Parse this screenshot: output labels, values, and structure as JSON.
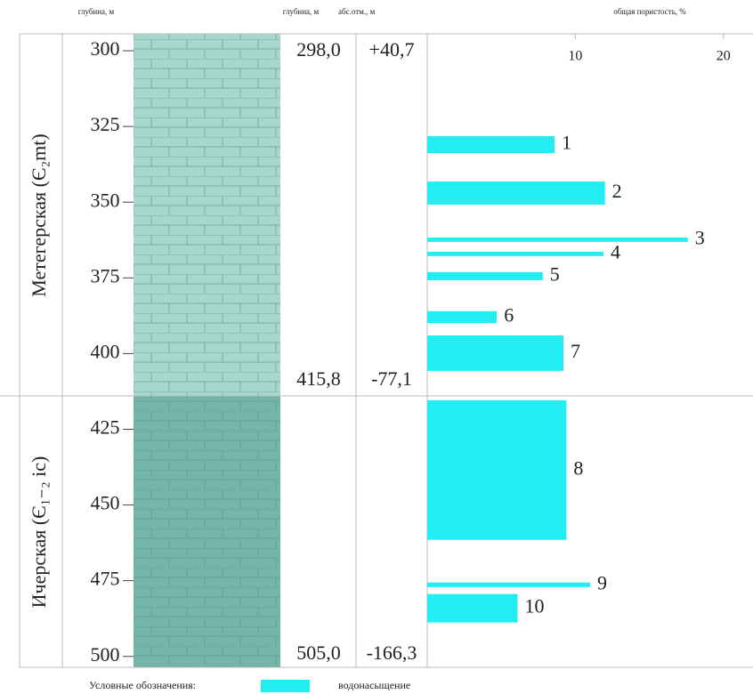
{
  "chart_data": {
    "type": "bar",
    "orientation": "horizontal",
    "title": "общая пористость, %",
    "y_label": "глубина, м",
    "color": "#22eef2",
    "xlim": [
      0,
      22
    ],
    "xticks": [
      10,
      20
    ],
    "ylim": [
      294.4,
      503.6
    ],
    "yticks": [
      300,
      325,
      350,
      375,
      400,
      425,
      450,
      475,
      500
    ],
    "labels": [
      "1",
      "2",
      "3",
      "4",
      "5",
      "6",
      "7",
      "8",
      "9",
      "10"
    ],
    "depth_top": [
      328.2,
      343.2,
      361.7,
      366.4,
      373.1,
      386.0,
      394.0,
      415.4,
      475.6,
      479.4
    ],
    "depth_bottom": [
      333.8,
      350.8,
      363.1,
      367.8,
      375.8,
      389.9,
      405.7,
      461.5,
      477.1,
      488.8
    ],
    "values": [
      8.6,
      12.0,
      17.6,
      11.9,
      7.8,
      4.7,
      9.2,
      9.4,
      11.0,
      6.1
    ]
  },
  "columns": {
    "depth_header": "глубина, м",
    "elevation_header": "абс.отм., м"
  },
  "formations": [
    "Метегерская (Є₂mt)",
    "Ичерская (Є₁₋₂ ic)"
  ],
  "markers": [
    [
      "298,0",
      "+40,7"
    ],
    [
      "415,8",
      "-77,1"
    ],
    [
      "505,0",
      "-166,3"
    ]
  ],
  "legend": {
    "title": "Условные обозначения:",
    "item": "водонасыщение"
  }
}
